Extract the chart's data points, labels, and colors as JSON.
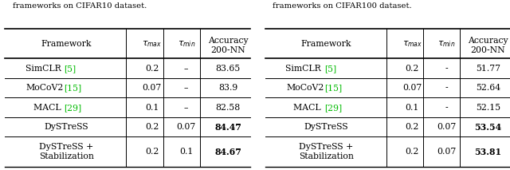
{
  "caption_left": "frameworks on CIFAR10 dataset.",
  "caption_right": "frameworks on CIFAR100 dataset.",
  "table_left": [
    [
      "SimCLR ",
      "[5]",
      "0.2",
      "–",
      "83.65",
      false
    ],
    [
      "MoCoV2",
      "[15]",
      "0.07",
      "–",
      "83.9",
      false
    ],
    [
      "MACL ",
      "[29]",
      "0.1",
      "–",
      "82.58",
      false
    ],
    [
      "DySTreSS",
      "",
      "0.2",
      "0.07",
      "84.47",
      true
    ],
    [
      "DySTreSS +\nStabilization",
      "",
      "0.2",
      "0.1",
      "84.67",
      true
    ]
  ],
  "table_right": [
    [
      "SimCLR ",
      "[5]",
      "0.2",
      "-",
      "51.77",
      false
    ],
    [
      "MoCoV2",
      "[15]",
      "0.07",
      "-",
      "52.64",
      false
    ],
    [
      "MACL ",
      "[29]",
      "0.1",
      "-",
      "52.15",
      false
    ],
    [
      "DySTreSS",
      "",
      "0.2",
      "0.07",
      "53.54",
      true
    ],
    [
      "DySTreSS +\nStabilization",
      "",
      "0.2",
      "0.07",
      "53.81",
      true
    ]
  ],
  "green_color": "#00bb00",
  "black_color": "#000000",
  "bg_color": "#ffffff",
  "fontsize": 8.5
}
